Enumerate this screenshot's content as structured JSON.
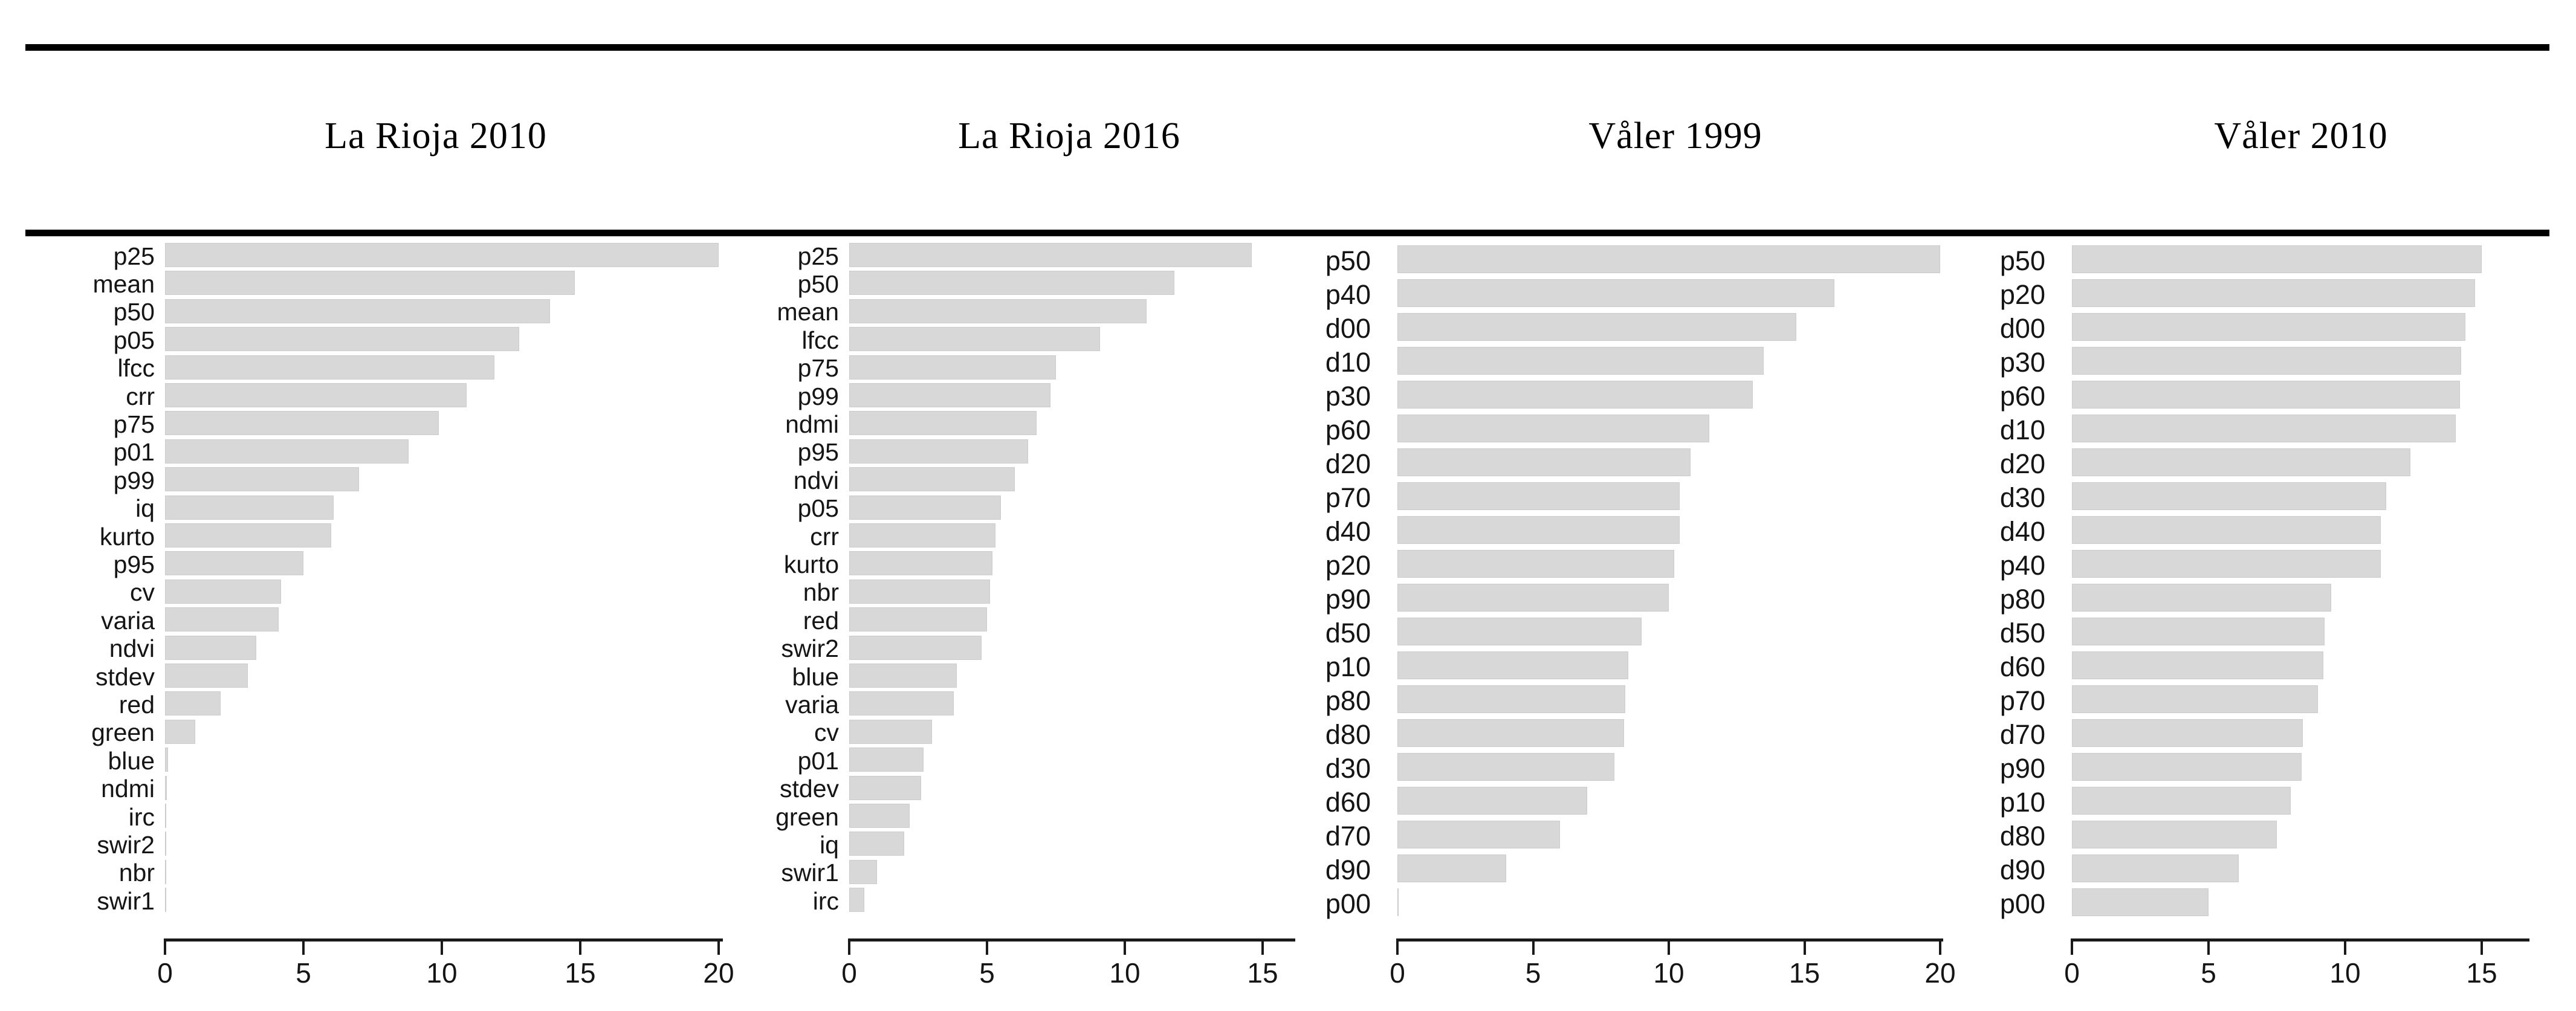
{
  "figure": {
    "description_visible_text_only": true,
    "bar_fill_color": "#d8d8d8",
    "rule_color": "#000000",
    "text_color": "#151515"
  },
  "chart_data": [
    {
      "type": "bar",
      "orientation": "horizontal",
      "title": "La Rioja 2010",
      "xlabel": "",
      "ylabel": "",
      "xlim": [
        0,
        20.2
      ],
      "xticks": [
        0,
        5,
        10,
        15,
        20
      ],
      "grid": false,
      "legend": "none",
      "categories": [
        "p25",
        "mean",
        "p50",
        "p05",
        "lfcc",
        "crr",
        "p75",
        "p01",
        "p99",
        "iq",
        "kurto",
        "p95",
        "cv",
        "varia",
        "ndvi",
        "stdev",
        "red",
        "green",
        "blue",
        "ndmi",
        "irc",
        "swir2",
        "nbr",
        "swir1"
      ],
      "values": [
        20.0,
        14.8,
        13.9,
        12.8,
        11.9,
        10.9,
        9.9,
        8.8,
        7.0,
        6.1,
        6.0,
        5.0,
        4.2,
        4.1,
        3.3,
        3.0,
        2.0,
        1.1,
        0.1,
        0.06,
        0.05,
        0.05,
        0.04,
        0.03
      ]
    },
    {
      "type": "bar",
      "orientation": "horizontal",
      "title": "La Rioja 2016",
      "xlabel": "",
      "ylabel": "",
      "xlim": [
        0,
        16.2
      ],
      "xticks": [
        0,
        5,
        10,
        15
      ],
      "grid": false,
      "legend": "none",
      "categories": [
        "p25",
        "p50",
        "mean",
        "lfcc",
        "p75",
        "p99",
        "ndmi",
        "p95",
        "ndvi",
        "p05",
        "crr",
        "kurto",
        "nbr",
        "red",
        "swir2",
        "blue",
        "varia",
        "cv",
        "p01",
        "stdev",
        "green",
        "iq",
        "swir1",
        "irc"
      ],
      "values": [
        14.6,
        11.8,
        10.8,
        9.1,
        7.5,
        7.3,
        6.8,
        6.5,
        6.0,
        5.5,
        5.3,
        5.2,
        5.1,
        5.0,
        4.8,
        3.9,
        3.8,
        3.0,
        2.7,
        2.6,
        2.2,
        2.0,
        1.0,
        0.55
      ]
    },
    {
      "type": "bar",
      "orientation": "horizontal",
      "title": "Våler 1999",
      "xlabel": "",
      "ylabel": "",
      "xlim": [
        0,
        20.1
      ],
      "xticks": [
        0,
        5,
        10,
        15,
        20
      ],
      "grid": false,
      "legend": "none",
      "categories": [
        "p50",
        "p40",
        "d00",
        "d10",
        "p30",
        "p60",
        "d20",
        "p70",
        "d40",
        "p20",
        "p90",
        "d50",
        "p10",
        "p80",
        "d80",
        "d30",
        "d60",
        "d70",
        "d90",
        "p00"
      ],
      "values": [
        20.0,
        16.1,
        14.7,
        13.5,
        13.1,
        11.5,
        10.8,
        10.4,
        10.4,
        10.2,
        10.0,
        9.0,
        8.5,
        8.4,
        8.35,
        8.0,
        7.0,
        6.0,
        4.0,
        0.05
      ]
    },
    {
      "type": "bar",
      "orientation": "horizontal",
      "title": "Våler 2010",
      "xlabel": "",
      "ylabel": "",
      "xlim": [
        0,
        16.7
      ],
      "xticks": [
        0,
        5,
        10,
        15
      ],
      "grid": false,
      "legend": "none",
      "categories": [
        "p50",
        "p20",
        "d00",
        "p30",
        "p60",
        "d10",
        "d20",
        "d30",
        "d40",
        "p40",
        "p80",
        "d50",
        "d60",
        "p70",
        "d70",
        "p90",
        "p10",
        "d80",
        "d90",
        "p00"
      ],
      "values": [
        15.0,
        14.75,
        14.4,
        14.25,
        14.2,
        14.05,
        12.4,
        11.5,
        11.3,
        11.3,
        9.5,
        9.25,
        9.2,
        9.0,
        8.45,
        8.4,
        8.0,
        7.5,
        6.1,
        5.0
      ]
    }
  ]
}
